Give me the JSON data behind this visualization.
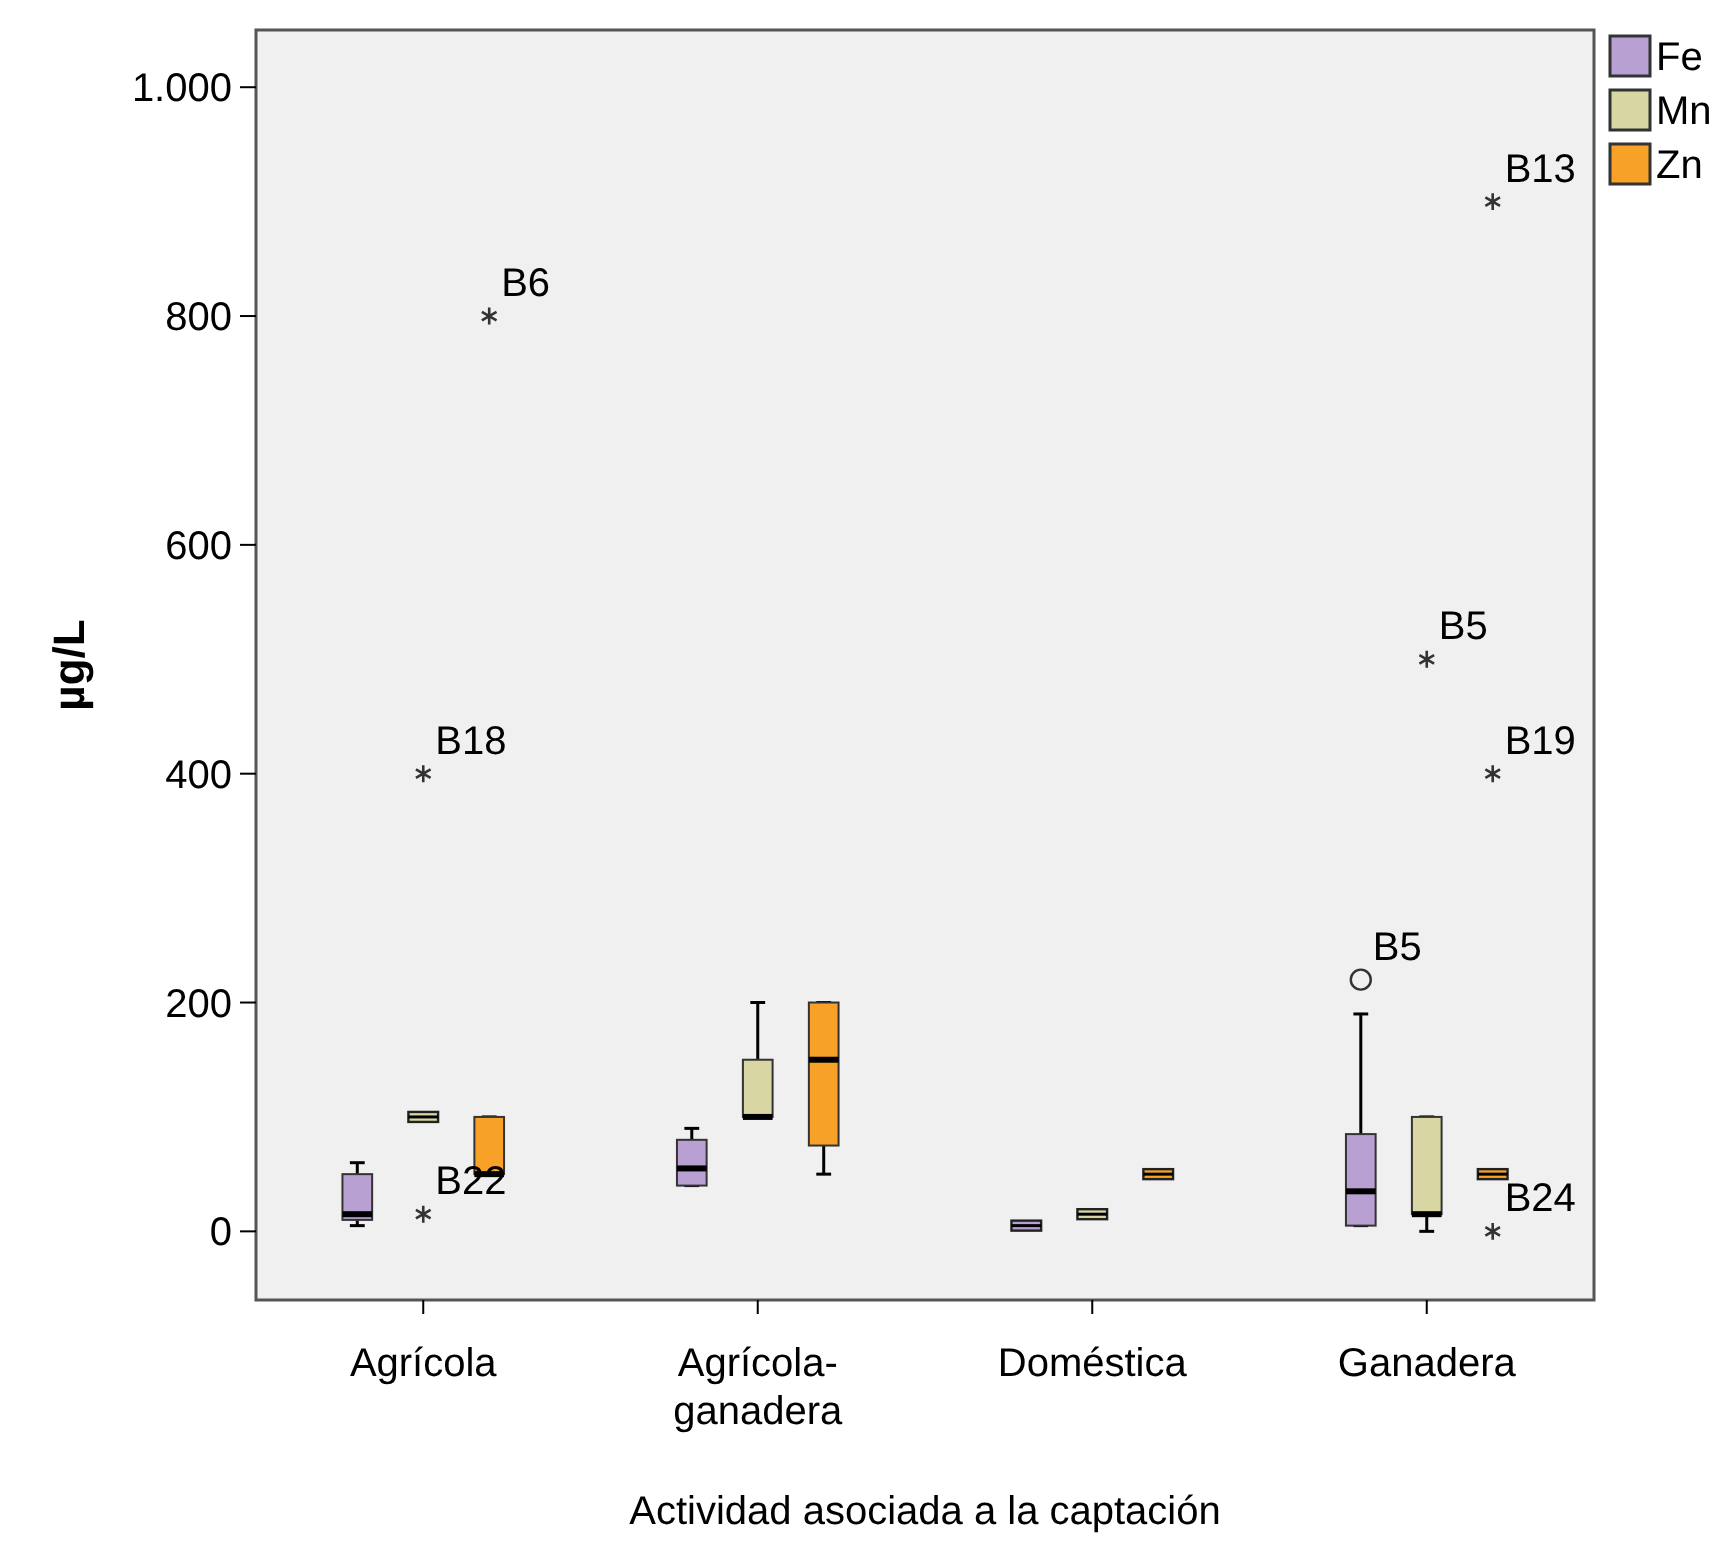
{
  "chart_data": {
    "type": "box",
    "xlabel": "Actividad asociada a la captación",
    "ylabel": "µg/L",
    "categories": [
      "Agrícola",
      "Agrícola-\nganadera",
      "Doméstica",
      "Ganadera"
    ],
    "ylim": [
      -60,
      1050
    ],
    "yticks": [
      0,
      200,
      400,
      600,
      {
        "value": 1000,
        "label": "1.000"
      },
      800
    ],
    "legend": "top right",
    "grid": false,
    "series": [
      {
        "name": "Fe",
        "color": "#b8a0d2",
        "marker": "circle",
        "boxes": [
          {
            "low": 5,
            "q1": 10,
            "median": 15,
            "q3": 50,
            "high": 60
          },
          {
            "low": 40,
            "q1": 40,
            "median": 55,
            "q3": 80,
            "high": 90
          },
          {
            "low": 5,
            "q1": 5,
            "median": 5,
            "q3": 5,
            "high": 5
          },
          {
            "low": 5,
            "q1": 5,
            "median": 35,
            "q3": 85,
            "high": 190,
            "outliers": [
              220
            ]
          }
        ]
      },
      {
        "name": "Mn",
        "color": "#d8d6a2",
        "marker": "star",
        "boxes": [
          {
            "low": 100,
            "q1": 100,
            "median": 100,
            "q3": 100,
            "high": 100,
            "outliers": [
              400,
              15
            ]
          },
          {
            "low": 100,
            "q1": 100,
            "median": 100,
            "q3": 150,
            "high": 200
          },
          {
            "low": 15,
            "q1": 15,
            "median": 15,
            "q3": 15,
            "high": 15
          },
          {
            "low": 0,
            "q1": 15,
            "median": 15,
            "q3": 100,
            "high": 100,
            "outliers": [
              500
            ]
          }
        ]
      },
      {
        "name": "Zn",
        "color": "#f7a128",
        "marker": "star",
        "boxes": [
          {
            "low": 50,
            "q1": 50,
            "median": 50,
            "q3": 100,
            "high": 100,
            "outliers": [
              800
            ]
          },
          {
            "low": 50,
            "q1": 75,
            "median": 150,
            "q3": 200,
            "high": 200
          },
          {
            "low": 50,
            "q1": 50,
            "median": 50,
            "q3": 50,
            "high": 50
          },
          {
            "low": 50,
            "q1": 50,
            "median": 50,
            "q3": 50,
            "high": 50,
            "outliers": [
              900,
              400,
              0
            ]
          }
        ]
      }
    ],
    "annotations": [
      "B5",
      "B18",
      "B22",
      "B5",
      "B6",
      "B13",
      "B19",
      "B24"
    ]
  }
}
